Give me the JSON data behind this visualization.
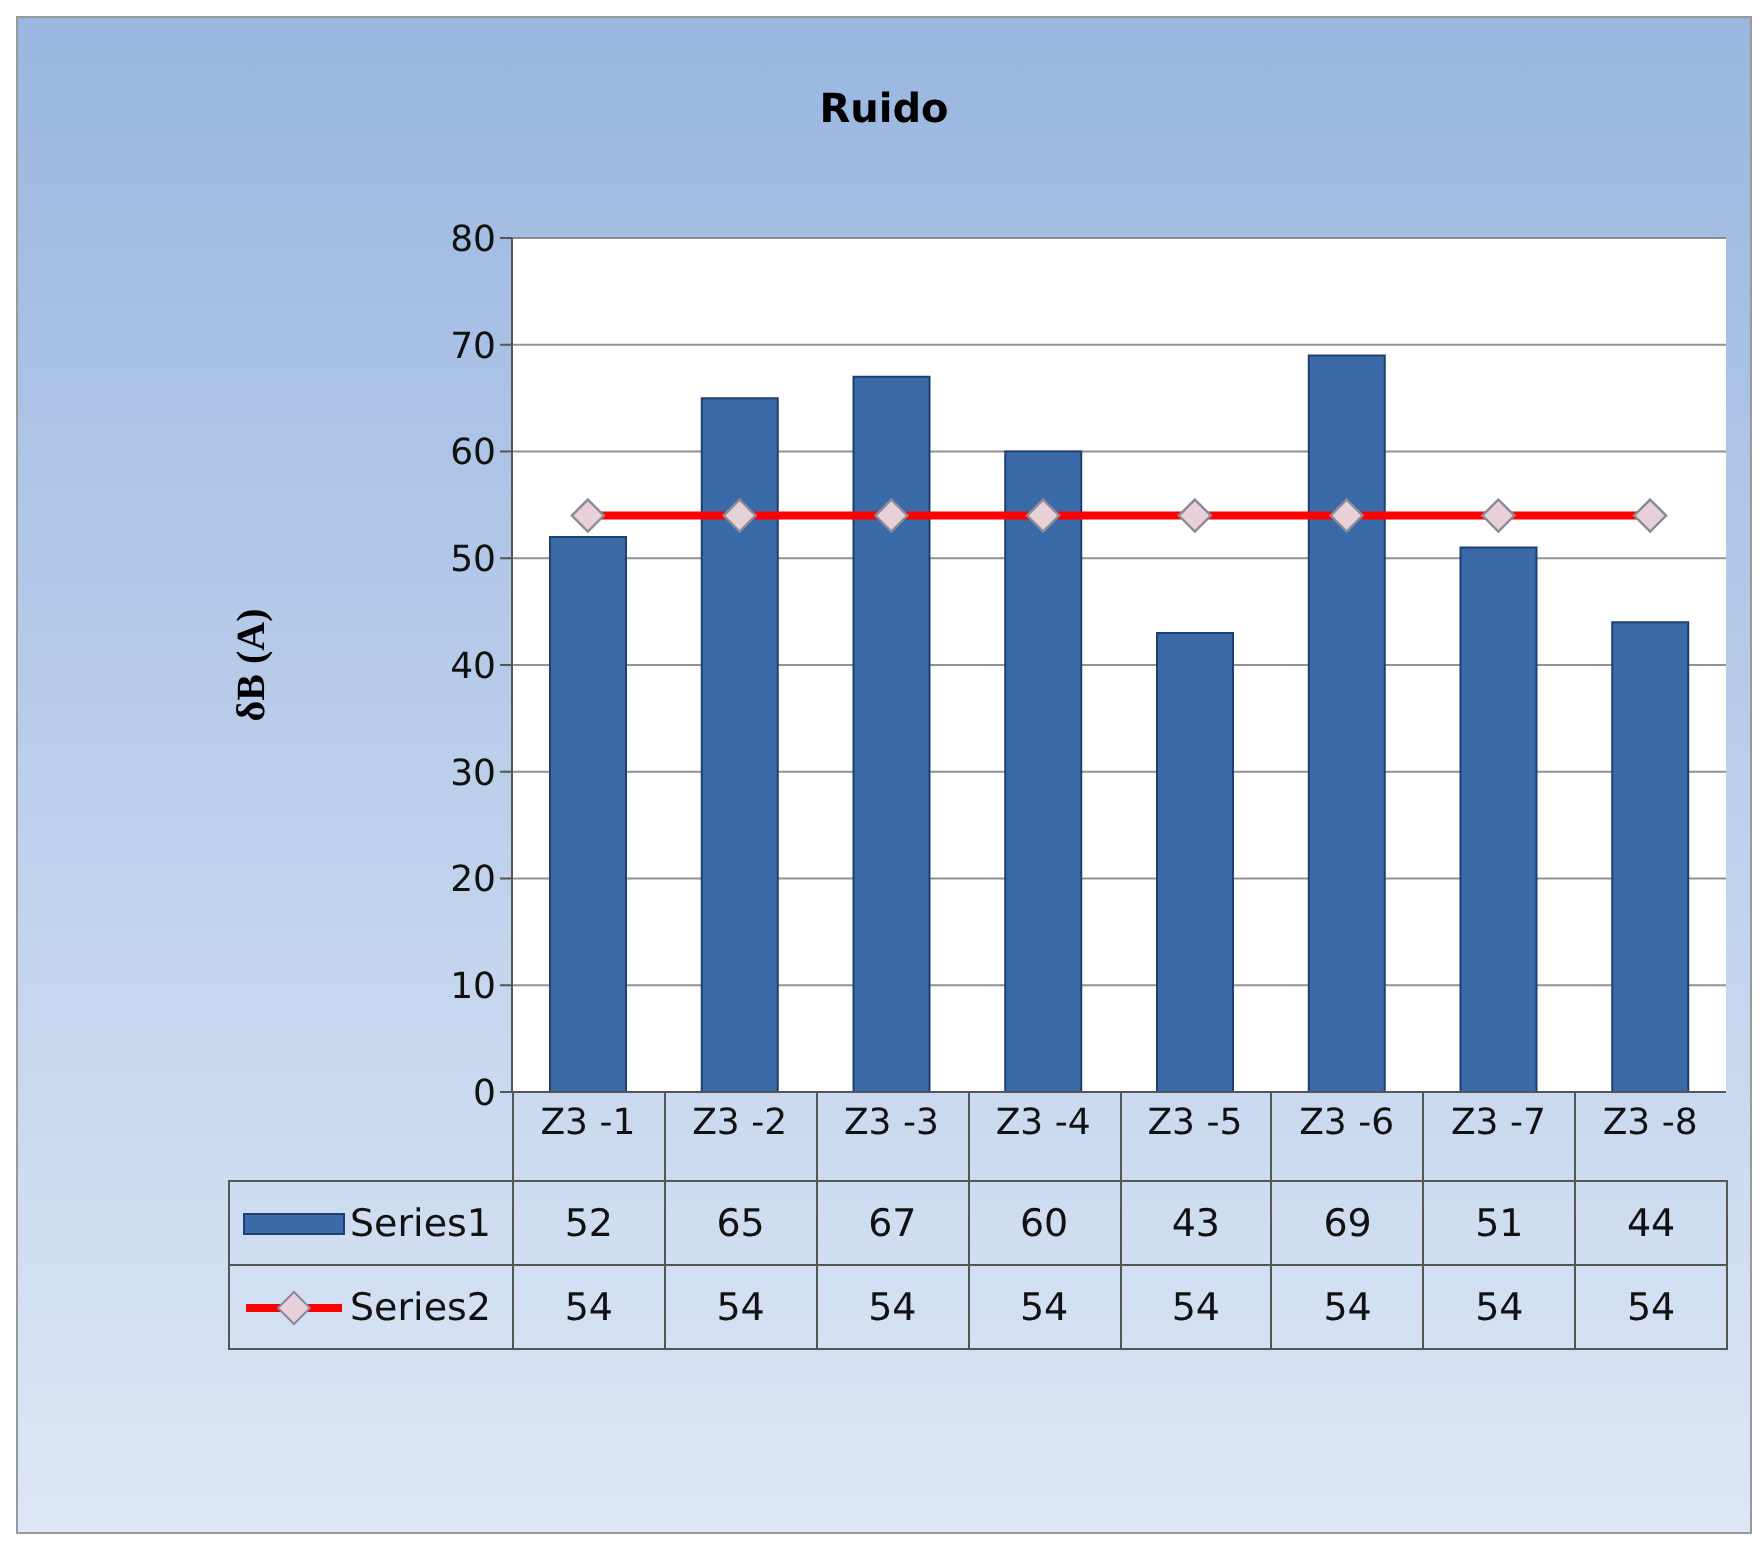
{
  "chart_data": {
    "type": "bar",
    "title": "Ruido",
    "ylabel": "δB (A)",
    "categories": [
      "Z3 -1",
      "Z3 -2",
      "Z3 -3",
      "Z3 -4",
      "Z3 -5",
      "Z3 -6",
      "Z3 -7",
      "Z3 -8"
    ],
    "series": [
      {
        "name": "Series1",
        "color": "#3a6aa8",
        "values": [
          52,
          65,
          67,
          60,
          43,
          69,
          51,
          44
        ]
      },
      {
        "name": "Series2",
        "type": "line",
        "color": "#ff0000",
        "marker": "diamond",
        "values": [
          54,
          54,
          54,
          54,
          54,
          54,
          54,
          54
        ]
      }
    ],
    "ylim": [
      0,
      80
    ],
    "yticks": [
      0,
      10,
      20,
      30,
      40,
      50,
      60,
      70,
      80
    ],
    "grid": "y",
    "legend": "bottom",
    "data_labels": true
  }
}
